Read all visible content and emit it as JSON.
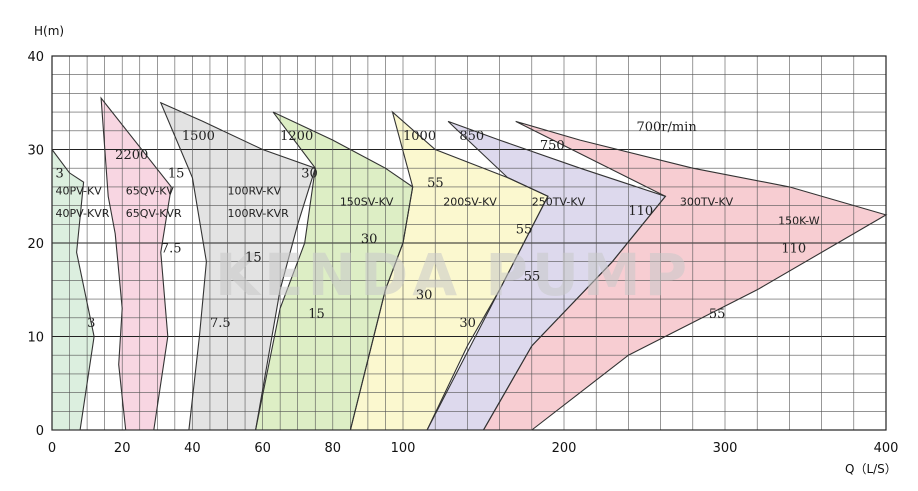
{
  "chart_data": {
    "type": "area",
    "ylabel": "H(m)",
    "xlabel": "Q（L/S）",
    "yticks": [
      "0",
      "10",
      "20",
      "30",
      "40"
    ],
    "xticks": [
      "0",
      "20",
      "40",
      "60",
      "80",
      "100",
      "200",
      "300",
      "400"
    ],
    "ylim": [
      0,
      40
    ],
    "x_scale": "piecewise: 0-100 then 100-400",
    "watermark": "KENDA PUMP",
    "zones": [
      {
        "id": "40pv",
        "labels": [
          "40PV-KV",
          "40PV-KVR"
        ],
        "color": "#dcefdf",
        "outline": [
          [
            0,
            30
          ],
          [
            5,
            27.5
          ],
          [
            9,
            26.5
          ],
          [
            7,
            19
          ],
          [
            12,
            10
          ],
          [
            8,
            0
          ],
          [
            0,
            0
          ]
        ],
        "speed_labels": [
          {
            "text": "3",
            "q": 1,
            "h": 27
          },
          {
            "text": "3",
            "q": 10,
            "h": 11
          }
        ]
      },
      {
        "id": "65qv",
        "labels": [
          "65QV-KV",
          "65QV-KVR"
        ],
        "color": "#f8d6e2",
        "outline": [
          [
            14,
            35.5
          ],
          [
            34,
            26
          ],
          [
            31,
            19
          ],
          [
            33,
            10
          ],
          [
            29,
            0
          ],
          [
            21,
            0
          ],
          [
            19,
            7
          ],
          [
            20,
            13
          ],
          [
            18,
            21
          ],
          [
            16,
            25
          ]
        ],
        "speed_labels": [
          {
            "text": "2200",
            "q": 18,
            "h": 29
          },
          {
            "text": "15",
            "q": 33,
            "h": 27
          },
          {
            "text": "7.5",
            "q": 31,
            "h": 19
          },
          {
            "text": "7.5",
            "q": 45,
            "h": 11
          }
        ]
      },
      {
        "id": "100rv",
        "labels": [
          "100RV-KV",
          "100RV-KVR"
        ],
        "color": "#e3e3e3",
        "outline": [
          [
            31,
            35
          ],
          [
            43,
            33
          ],
          [
            60,
            30
          ],
          [
            75,
            28
          ],
          [
            70,
            22
          ],
          [
            65,
            15
          ],
          [
            58,
            0
          ],
          [
            39,
            0
          ],
          [
            42,
            10
          ],
          [
            44,
            18
          ],
          [
            40,
            27
          ]
        ],
        "speed_labels": [
          {
            "text": "1500",
            "q": 37,
            "h": 31
          },
          {
            "text": "30",
            "q": 71,
            "h": 27
          },
          {
            "text": "15",
            "q": 55,
            "h": 18
          },
          {
            "text": "15",
            "q": 73,
            "h": 12
          }
        ]
      },
      {
        "id": "150sv",
        "labels": [
          "150SV-KV"
        ],
        "color": "#ddeec5",
        "outline": [
          [
            63,
            34
          ],
          [
            80,
            31
          ],
          [
            95,
            28
          ],
          [
            106,
            26
          ],
          [
            100,
            20
          ],
          [
            95,
            15
          ],
          [
            85,
            0
          ],
          [
            58,
            0
          ],
          [
            65,
            13
          ],
          [
            72,
            20
          ],
          [
            75,
            28
          ]
        ],
        "speed_labels": [
          {
            "text": "1200",
            "q": 65,
            "h": 31
          },
          {
            "text": "30",
            "q": 88,
            "h": 20
          },
          {
            "text": "30",
            "q": 108,
            "h": 14
          }
        ]
      },
      {
        "id": "200sv",
        "labels": [
          "200SV-KV"
        ],
        "color": "#fbf8cf",
        "outline": [
          [
            97,
            34
          ],
          [
            120,
            30
          ],
          [
            165,
            27
          ],
          [
            190,
            25
          ],
          [
            160,
            15
          ],
          [
            140,
            9
          ],
          [
            115,
            0
          ],
          [
            85,
            0
          ],
          [
            95,
            15
          ],
          [
            100,
            20
          ],
          [
            106,
            26
          ]
        ],
        "speed_labels": [
          {
            "text": "1000",
            "q": 100,
            "h": 31
          },
          {
            "text": "55",
            "q": 115,
            "h": 26
          },
          {
            "text": "55",
            "q": 170,
            "h": 21
          },
          {
            "text": "30",
            "q": 135,
            "h": 11
          }
        ]
      },
      {
        "id": "250tv",
        "labels": [
          "250TV-KV"
        ],
        "color": "#ddd9ed",
        "outline": [
          [
            128,
            33
          ],
          [
            160,
            31
          ],
          [
            210,
            28
          ],
          [
            263,
            25
          ],
          [
            230,
            18
          ],
          [
            180,
            9
          ],
          [
            150,
            0
          ],
          [
            115,
            0
          ],
          [
            160,
            15
          ],
          [
            190,
            25
          ],
          [
            165,
            27
          ]
        ],
        "speed_labels": [
          {
            "text": "850",
            "q": 135,
            "h": 31
          },
          {
            "text": "110",
            "q": 240,
            "h": 23
          },
          {
            "text": "55",
            "q": 175,
            "h": 16
          }
        ]
      },
      {
        "id": "300tv",
        "labels": [
          "300TV-KV",
          "150K-W"
        ],
        "color": "#f7cdd2",
        "outline": [
          [
            170,
            33
          ],
          [
            210,
            31
          ],
          [
            280,
            28
          ],
          [
            340,
            26
          ],
          [
            400,
            23
          ],
          [
            320,
            15
          ],
          [
            240,
            8
          ],
          [
            180,
            0
          ],
          [
            150,
            0
          ],
          [
            180,
            9
          ],
          [
            230,
            18
          ],
          [
            263,
            25
          ]
        ],
        "speed_labels": [
          {
            "text": "700r/min",
            "q": 245,
            "h": 32
          },
          {
            "text": "750",
            "q": 185,
            "h": 30
          },
          {
            "text": "110",
            "q": 335,
            "h": 19
          },
          {
            "text": "55",
            "q": 290,
            "h": 12
          }
        ]
      }
    ]
  }
}
